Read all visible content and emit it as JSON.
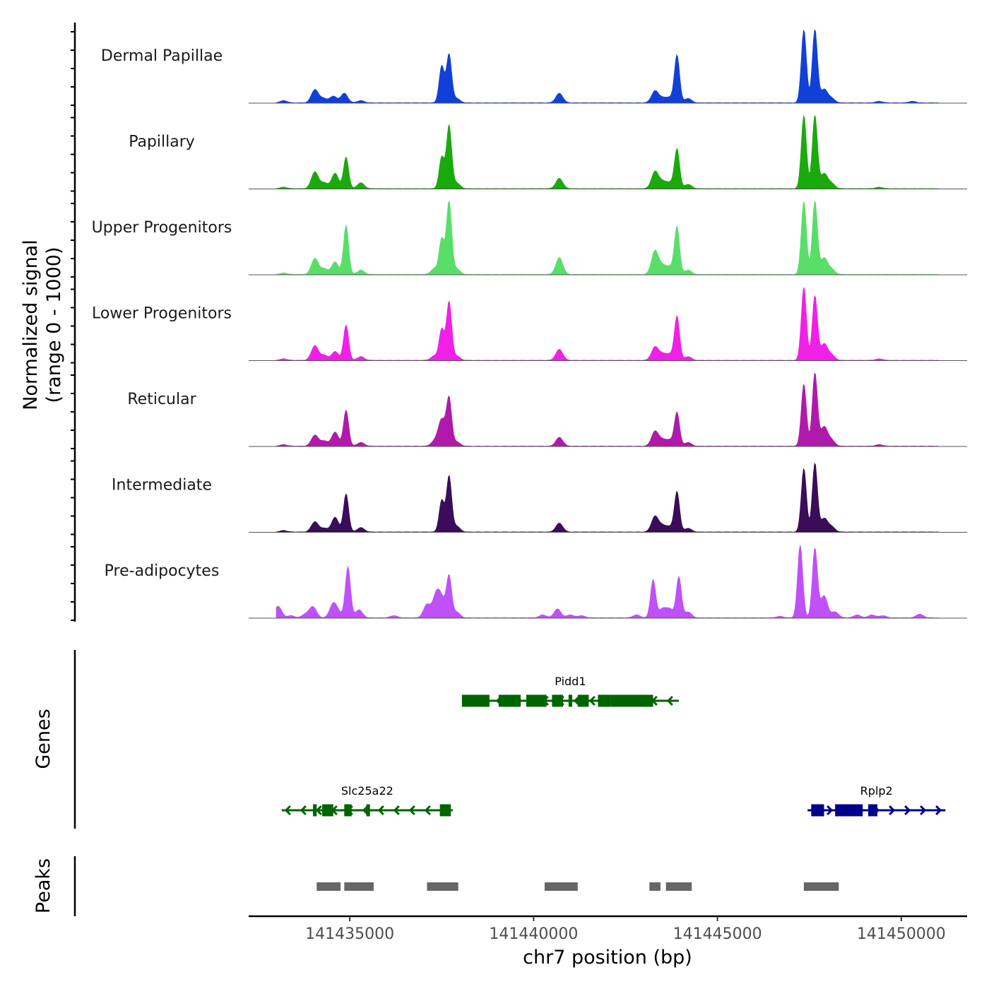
{
  "chart_data": {
    "type": "area",
    "title": "",
    "ylabel": "Normalized signal\n(range 0 - 1000)",
    "ylabel_lines": [
      "Normalized signal",
      "(range 0 - 1000)"
    ],
    "xlabel": "chr7 position (bp)",
    "xlim": [
      141432250,
      141451790
    ],
    "ylim": [
      0,
      1000
    ],
    "x_ticks": [
      141435000,
      141440000,
      141445000,
      141450000
    ],
    "x_tick_labels": [
      "141435000",
      "141440000",
      "141445000",
      "141450000"
    ],
    "grid": false,
    "tracks": [
      {
        "name": "Dermal Papillae",
        "color": "#1040d8",
        "peaks": [
          [
            141433200,
            30
          ],
          [
            141434050,
            180
          ],
          [
            141434280,
            60
          ],
          [
            141434550,
            90
          ],
          [
            141434850,
            130
          ],
          [
            141435300,
            30
          ],
          [
            141437500,
            500
          ],
          [
            141437700,
            660
          ],
          [
            141437900,
            60
          ],
          [
            141440700,
            130
          ],
          [
            141443300,
            160
          ],
          [
            141443500,
            60
          ],
          [
            141443700,
            70
          ],
          [
            141443900,
            650
          ],
          [
            141444200,
            60
          ],
          [
            141447350,
            1000
          ],
          [
            141447650,
            1000
          ],
          [
            141447900,
            180
          ],
          [
            141448100,
            60
          ],
          [
            141449400,
            20
          ],
          [
            141450300,
            20
          ]
        ]
      },
      {
        "name": "Papillary",
        "color": "#1aaa0c",
        "peaks": [
          [
            141433200,
            20
          ],
          [
            141434050,
            230
          ],
          [
            141434300,
            80
          ],
          [
            141434600,
            210
          ],
          [
            141434900,
            430
          ],
          [
            141435300,
            80
          ],
          [
            141437500,
            430
          ],
          [
            141437700,
            860
          ],
          [
            141437900,
            80
          ],
          [
            141440700,
            140
          ],
          [
            141443300,
            230
          ],
          [
            141443500,
            90
          ],
          [
            141443700,
            80
          ],
          [
            141443900,
            540
          ],
          [
            141444200,
            60
          ],
          [
            141447350,
            1000
          ],
          [
            141447650,
            1000
          ],
          [
            141447900,
            200
          ],
          [
            141448100,
            70
          ],
          [
            141449400,
            20
          ]
        ]
      },
      {
        "name": "Upper Progenitors",
        "color": "#5ade6a",
        "peaks": [
          [
            141433200,
            20
          ],
          [
            141434050,
            220
          ],
          [
            141434300,
            80
          ],
          [
            141434600,
            170
          ],
          [
            141434900,
            670
          ],
          [
            141435300,
            60
          ],
          [
            141437300,
            80
          ],
          [
            141437500,
            480
          ],
          [
            141437700,
            1000
          ],
          [
            141437900,
            80
          ],
          [
            141440700,
            230
          ],
          [
            141443300,
            320
          ],
          [
            141443500,
            110
          ],
          [
            141443700,
            100
          ],
          [
            141443900,
            650
          ],
          [
            141444200,
            60
          ],
          [
            141447350,
            1000
          ],
          [
            141447650,
            1000
          ],
          [
            141447900,
            220
          ],
          [
            141448100,
            70
          ]
        ]
      },
      {
        "name": "Lower Progenitors",
        "color": "#f020e8",
        "peaks": [
          [
            141433200,
            20
          ],
          [
            141434050,
            200
          ],
          [
            141434300,
            70
          ],
          [
            141434600,
            120
          ],
          [
            141434900,
            480
          ],
          [
            141435300,
            50
          ],
          [
            141437300,
            60
          ],
          [
            141437500,
            420
          ],
          [
            141437700,
            800
          ],
          [
            141437900,
            60
          ],
          [
            141440700,
            150
          ],
          [
            141443300,
            180
          ],
          [
            141443500,
            80
          ],
          [
            141443700,
            80
          ],
          [
            141443900,
            600
          ],
          [
            141444200,
            50
          ],
          [
            141447350,
            1000
          ],
          [
            141447650,
            880
          ],
          [
            141447900,
            220
          ],
          [
            141448100,
            70
          ],
          [
            141449400,
            20
          ]
        ]
      },
      {
        "name": "Reticular",
        "color": "#b01aaa",
        "peaks": [
          [
            141433200,
            20
          ],
          [
            141434050,
            150
          ],
          [
            141434300,
            70
          ],
          [
            141434600,
            190
          ],
          [
            141434900,
            490
          ],
          [
            141435300,
            50
          ],
          [
            141437300,
            60
          ],
          [
            141437500,
            360
          ],
          [
            141437700,
            640
          ],
          [
            141437900,
            60
          ],
          [
            141440700,
            120
          ],
          [
            141443300,
            200
          ],
          [
            141443500,
            80
          ],
          [
            141443700,
            80
          ],
          [
            141443900,
            460
          ],
          [
            141444200,
            50
          ],
          [
            141447350,
            850
          ],
          [
            141447650,
            1000
          ],
          [
            141447900,
            260
          ],
          [
            141448100,
            80
          ],
          [
            141449400,
            20
          ]
        ]
      },
      {
        "name": "Intermediate",
        "color": "#3a0c5a",
        "peaks": [
          [
            141433200,
            20
          ],
          [
            141434050,
            140
          ],
          [
            141434300,
            50
          ],
          [
            141434600,
            200
          ],
          [
            141434900,
            520
          ],
          [
            141435300,
            60
          ],
          [
            141437500,
            430
          ],
          [
            141437700,
            760
          ],
          [
            141437900,
            80
          ],
          [
            141440700,
            120
          ],
          [
            141443300,
            210
          ],
          [
            141443500,
            80
          ],
          [
            141443700,
            70
          ],
          [
            141443900,
            550
          ],
          [
            141444200,
            50
          ],
          [
            141447350,
            870
          ],
          [
            141447650,
            940
          ],
          [
            141447900,
            180
          ],
          [
            141448100,
            70
          ]
        ]
      },
      {
        "name": "Pre-adipocytes",
        "color": "#c050f8",
        "peaks": [
          [
            141433050,
            160
          ],
          [
            141433400,
            30
          ],
          [
            141433800,
            50
          ],
          [
            141434000,
            150
          ],
          [
            141434550,
            190
          ],
          [
            141434700,
            60
          ],
          [
            141434950,
            700
          ],
          [
            141435250,
            110
          ],
          [
            141436200,
            30
          ],
          [
            141437100,
            180
          ],
          [
            141437350,
            300
          ],
          [
            141437500,
            230
          ],
          [
            141437700,
            560
          ],
          [
            141437900,
            80
          ],
          [
            141440250,
            40
          ],
          [
            141440650,
            120
          ],
          [
            141441000,
            40
          ],
          [
            141441300,
            30
          ],
          [
            141442800,
            40
          ],
          [
            141443250,
            520
          ],
          [
            141443500,
            120
          ],
          [
            141443700,
            120
          ],
          [
            141443950,
            560
          ],
          [
            141444200,
            80
          ],
          [
            141446700,
            20
          ],
          [
            141447250,
            1000
          ],
          [
            141447650,
            950
          ],
          [
            141447900,
            300
          ],
          [
            141448200,
            80
          ],
          [
            141448800,
            40
          ],
          [
            141449200,
            40
          ],
          [
            141449500,
            30
          ],
          [
            141450500,
            50
          ]
        ]
      }
    ],
    "genes": [
      {
        "name": "Pidd1",
        "strand": "-",
        "color": "#006400",
        "start": 141438050,
        "end": 141443950,
        "exons": [
          [
            141438050,
            141438800
          ],
          [
            141439050,
            141439650
          ],
          [
            141439800,
            141440350
          ],
          [
            141440500,
            141440800
          ],
          [
            141440950,
            141441050
          ],
          [
            141441200,
            141441500
          ],
          [
            141441750,
            141442100
          ],
          [
            141442100,
            141443250
          ]
        ]
      },
      {
        "name": "Slc25a22",
        "strand": "-",
        "color": "#006400",
        "start": 141433150,
        "end": 141437800,
        "exons": [
          [
            141434000,
            141434100
          ],
          [
            141434250,
            141434550
          ],
          [
            141434850,
            141435050
          ],
          [
            141435450,
            141435550
          ],
          [
            141437450,
            141437750
          ]
        ]
      },
      {
        "name": "Rplp2",
        "strand": "+",
        "color": "#00008b",
        "start": 141447450,
        "end": 141451200,
        "exons": [
          [
            141447550,
            141447900
          ],
          [
            141448200,
            141448950
          ],
          [
            141449100,
            141449350
          ]
        ]
      }
    ],
    "peaks": [
      [
        141434100,
        141434750
      ],
      [
        141434850,
        141435650
      ],
      [
        141437100,
        141437950
      ],
      [
        141440300,
        141441200
      ],
      [
        141443150,
        141443450
      ],
      [
        141443600,
        141444300
      ],
      [
        141447350,
        141448300
      ]
    ],
    "peak_color": "#666666",
    "section_labels": [
      "Genes",
      "Peaks"
    ]
  }
}
